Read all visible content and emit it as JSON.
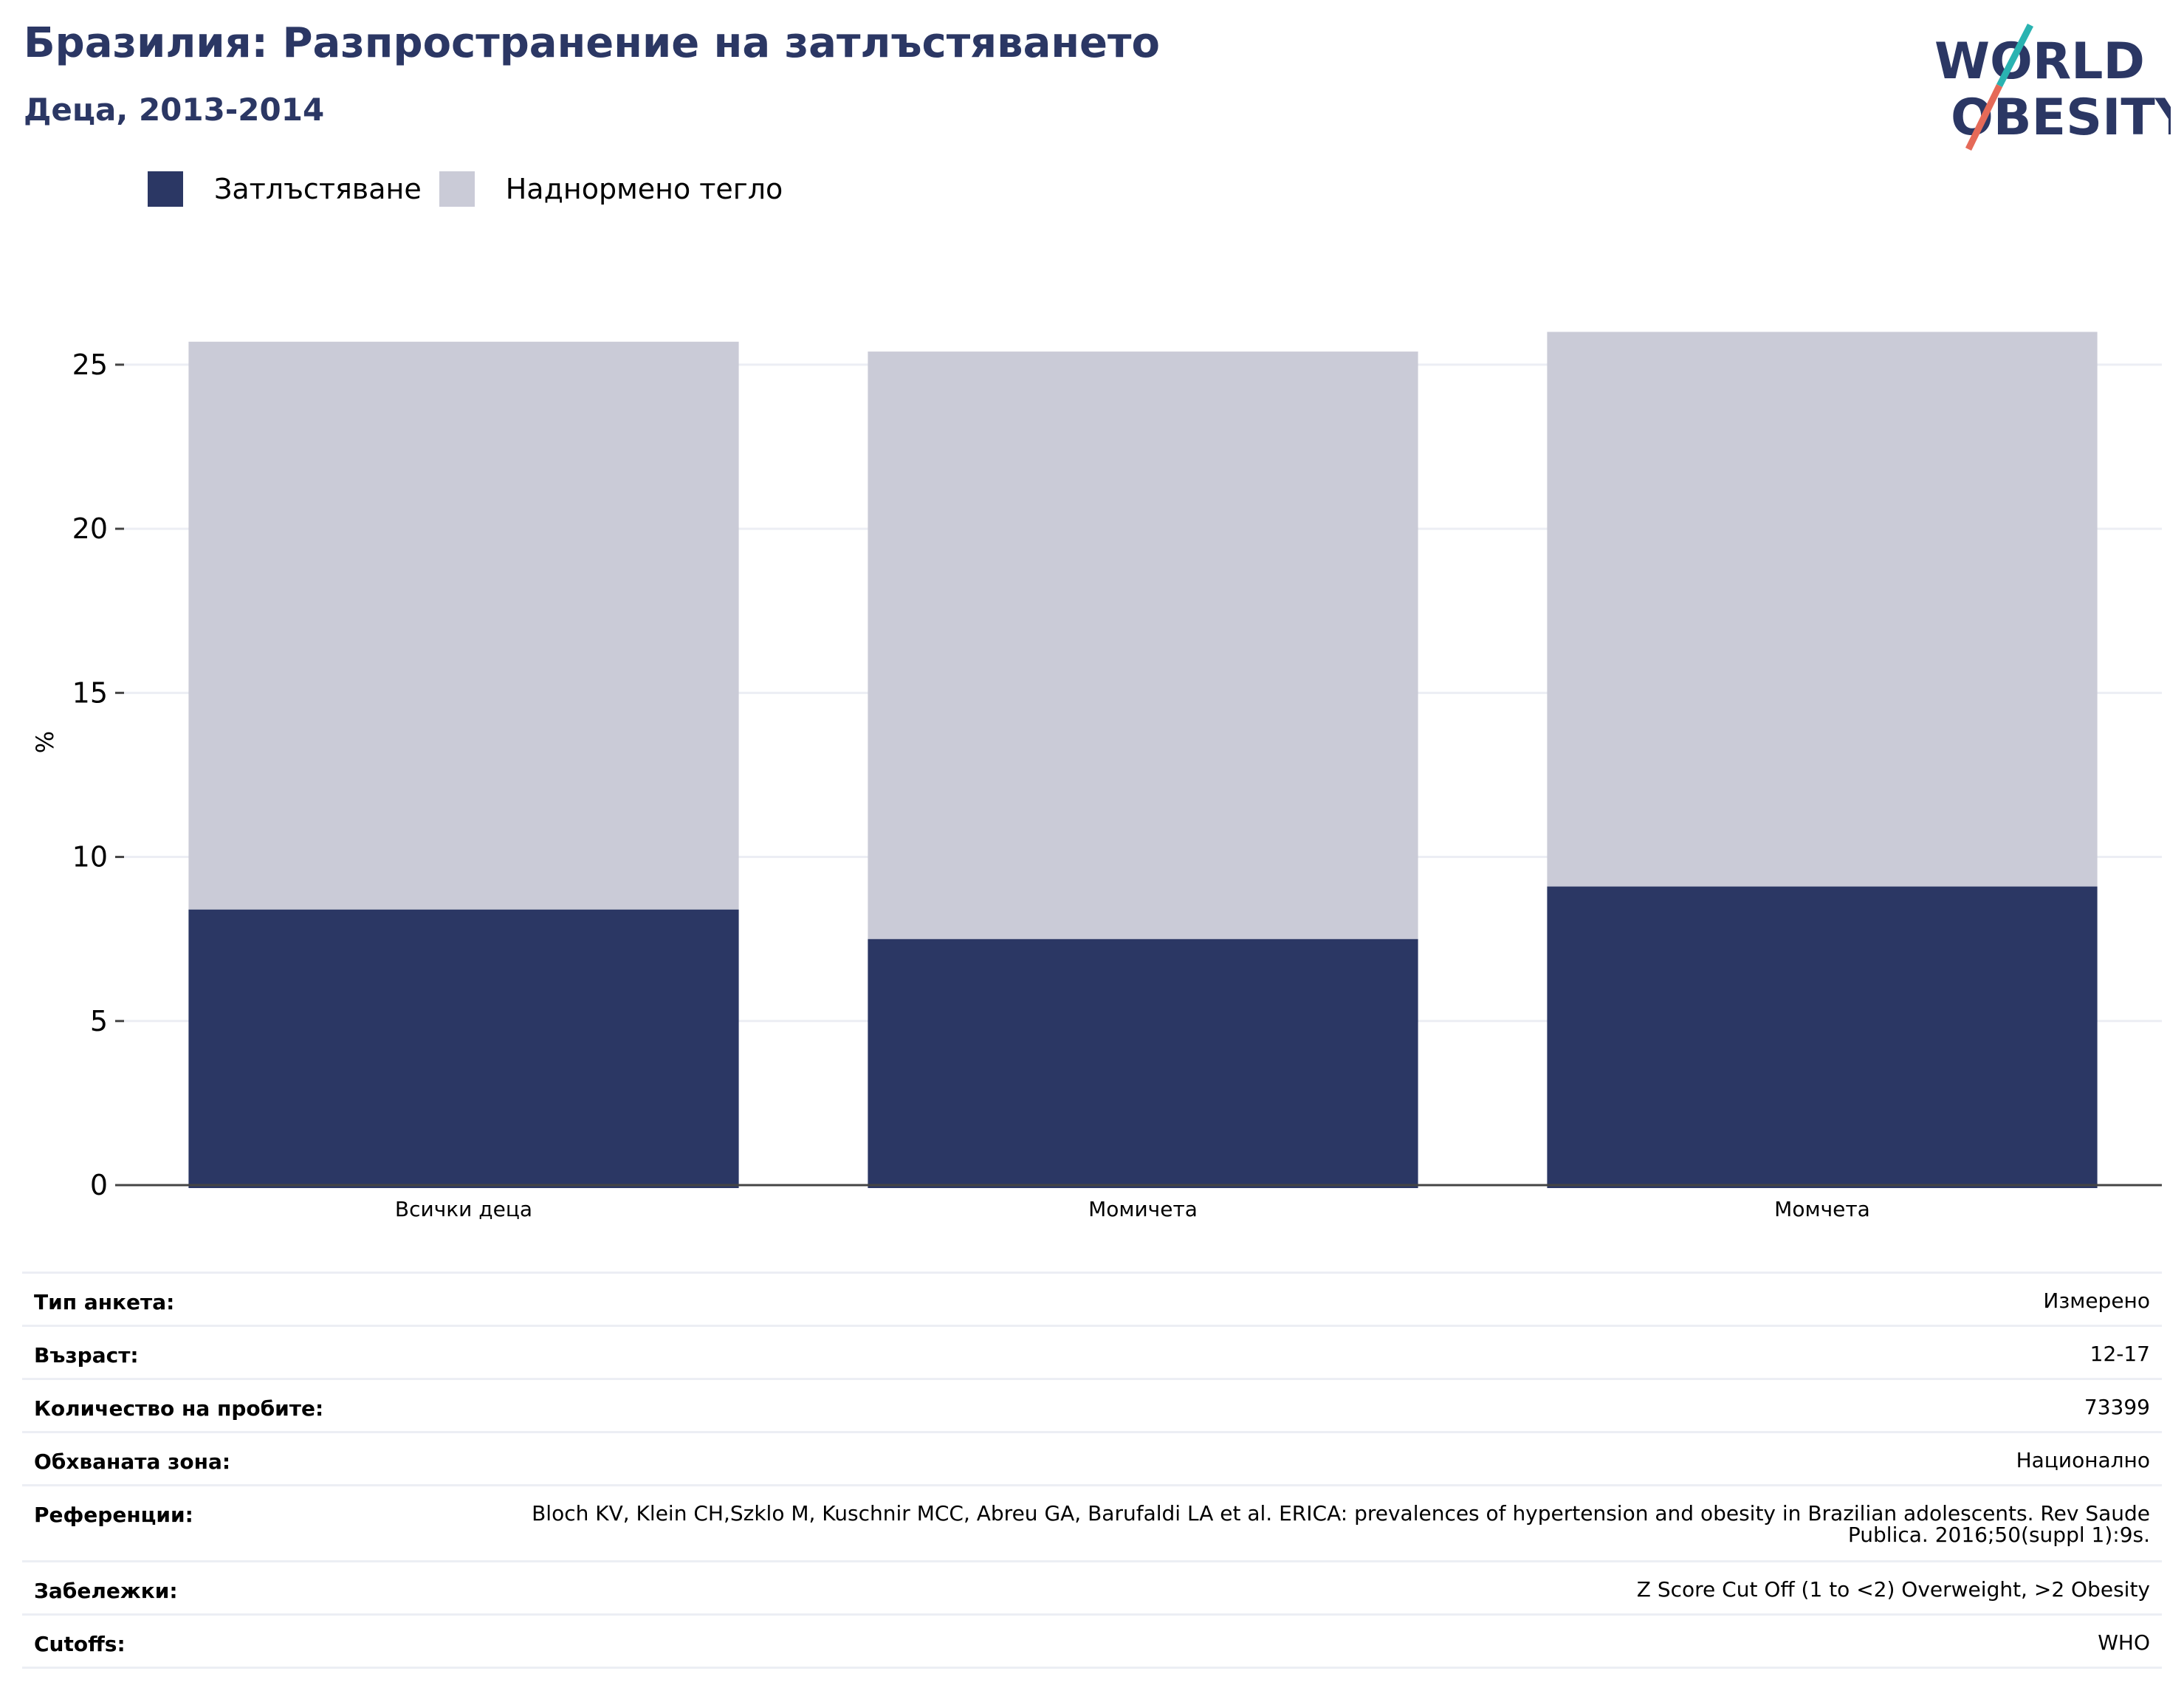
{
  "header": {
    "title": "Бразилия: Разпространение на затлъстяването",
    "subtitle": "Деца, 2013-2014"
  },
  "logo": {
    "line1": "WORLD",
    "line2": "OBESITY",
    "colors": {
      "text": "#2b3764",
      "slash_top": "#2ab3b1",
      "slash_bottom": "#e56a58"
    }
  },
  "colors": {
    "obesity": "#2b3764",
    "overweight": "#cacbd7",
    "grid": "#eceef4",
    "axis": "#444444"
  },
  "chart_data": {
    "type": "bar",
    "stacked": true,
    "categories": [
      "Всички деца",
      "Момичета",
      "Момчета"
    ],
    "series": [
      {
        "name": "Затлъстяване",
        "values": [
          8.4,
          7.5,
          9.1
        ],
        "color": "#2b3764"
      },
      {
        "name": "Наднормено тегло",
        "values": [
          17.3,
          17.9,
          16.9
        ],
        "color": "#cacbd7"
      }
    ],
    "ylabel": "%",
    "ylim": [
      0,
      27
    ],
    "yticks": [
      0,
      5,
      10,
      15,
      20,
      25
    ],
    "grid": true,
    "legend_position": "top-left"
  },
  "meta": [
    {
      "label": "Тип анкета:",
      "value": "Измерено"
    },
    {
      "label": "Възраст:",
      "value": "12-17"
    },
    {
      "label": "Количество на пробите:",
      "value": "73399"
    },
    {
      "label": "Обхваната зона:",
      "value": "Национално"
    },
    {
      "label": "Референции:",
      "value": "Bloch KV, Klein CH,Szklo M, Kuschnir MCC, Abreu GA, Barufaldi LA et al. ERICA: prevalences of hypertension and obesity in Brazilian adolescents. Rev Saude Publica. 2016;50(suppl 1):9s."
    },
    {
      "label": "Забележки:",
      "value": "Z Score Cut Off (1 to <2) Overweight, >2 Obesity"
    },
    {
      "label": "Cutoffs:",
      "value": "WHO"
    }
  ]
}
